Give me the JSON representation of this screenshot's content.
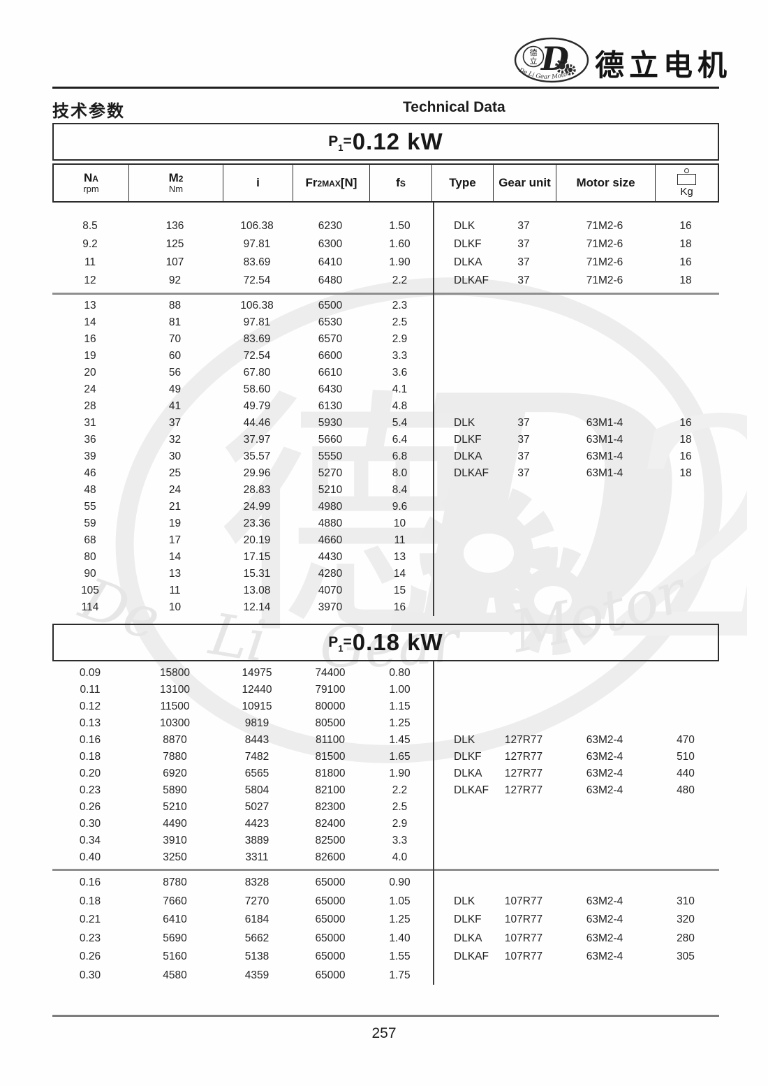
{
  "header": {
    "company_name": "德立电机",
    "title_cn": "技术参数",
    "title_en": "Technical Data",
    "logo": {
      "char_top": "德",
      "char_bottom": "立",
      "letter": "D",
      "curved_text": "De Li Gear Motor"
    }
  },
  "watermark": {
    "char": "德",
    "letter": "D",
    "digit": "2",
    "curved_text": "De  Li  Gear  Motor"
  },
  "columns": {
    "na_main": "N",
    "na_sub": "A",
    "na_unit": "rpm",
    "m2_main": "M",
    "m2_sub": "2",
    "m2_unit": "Nm",
    "i": "i",
    "fr_pre": "Fr",
    "fr_sub": "2MAX",
    "fr_post": "[N]",
    "fs_main": "f",
    "fs_sub": "S",
    "type": "Type",
    "gear_unit": "Gear unit",
    "motor_size": "Motor size",
    "kg": "Kg"
  },
  "sections": [
    {
      "power_prefix": "P",
      "power_sub": "1",
      "power_eq": "=",
      "power_value": "0.12 kW",
      "blocks": [
        {
          "rows": [
            [
              "8.5",
              "136",
              "106.38",
              "6230",
              "1.50",
              "DLK",
              "37",
              "71M2-6",
              "16"
            ],
            [
              "9.2",
              "125",
              "97.81",
              "6300",
              "1.60",
              "DLKF",
              "37",
              "71M2-6",
              "18"
            ],
            [
              "11",
              "107",
              "83.69",
              "6410",
              "1.90",
              "DLKA",
              "37",
              "71M2-6",
              "16"
            ],
            [
              "12",
              "92",
              "72.54",
              "6480",
              "2.2",
              "DLKAF",
              "37",
              "71M2-6",
              "18"
            ]
          ]
        },
        {
          "rows": [
            [
              "13",
              "88",
              "106.38",
              "6500",
              "2.3",
              "",
              "",
              "",
              ""
            ],
            [
              "14",
              "81",
              "97.81",
              "6530",
              "2.5",
              "",
              "",
              "",
              ""
            ],
            [
              "16",
              "70",
              "83.69",
              "6570",
              "2.9",
              "",
              "",
              "",
              ""
            ],
            [
              "19",
              "60",
              "72.54",
              "6600",
              "3.3",
              "",
              "",
              "",
              ""
            ],
            [
              "20",
              "56",
              "67.80",
              "6610",
              "3.6",
              "",
              "",
              "",
              ""
            ],
            [
              "24",
              "49",
              "58.60",
              "6430",
              "4.1",
              "",
              "",
              "",
              ""
            ],
            [
              "28",
              "41",
              "49.79",
              "6130",
              "4.8",
              "",
              "",
              "",
              ""
            ],
            [
              "31",
              "37",
              "44.46",
              "5930",
              "5.4",
              "DLK",
              "37",
              "63M1-4",
              "16"
            ],
            [
              "36",
              "32",
              "37.97",
              "5660",
              "6.4",
              "DLKF",
              "37",
              "63M1-4",
              "18"
            ],
            [
              "39",
              "30",
              "35.57",
              "5550",
              "6.8",
              "DLKA",
              "37",
              "63M1-4",
              "16"
            ],
            [
              "46",
              "25",
              "29.96",
              "5270",
              "8.0",
              "DLKAF",
              "37",
              "63M1-4",
              "18"
            ],
            [
              "48",
              "24",
              "28.83",
              "5210",
              "8.4",
              "",
              "",
              "",
              ""
            ],
            [
              "55",
              "21",
              "24.99",
              "4980",
              "9.6",
              "",
              "",
              "",
              ""
            ],
            [
              "59",
              "19",
              "23.36",
              "4880",
              "10",
              "",
              "",
              "",
              ""
            ],
            [
              "68",
              "17",
              "20.19",
              "4660",
              "11",
              "",
              "",
              "",
              ""
            ],
            [
              "80",
              "14",
              "17.15",
              "4430",
              "13",
              "",
              "",
              "",
              ""
            ],
            [
              "90",
              "13",
              "15.31",
              "4280",
              "14",
              "",
              "",
              "",
              ""
            ],
            [
              "105",
              "11",
              "13.08",
              "4070",
              "15",
              "",
              "",
              "",
              ""
            ],
            [
              "114",
              "10",
              "12.14",
              "3970",
              "16",
              "",
              "",
              "",
              ""
            ]
          ]
        }
      ]
    },
    {
      "power_prefix": "P",
      "power_sub": "1",
      "power_eq": "=",
      "power_value": "0.18 kW",
      "blocks": [
        {
          "rows": [
            [
              "0.09",
              "15800",
              "14975",
              "74400",
              "0.80",
              "",
              "",
              "",
              ""
            ],
            [
              "0.11",
              "13100",
              "12440",
              "79100",
              "1.00",
              "",
              "",
              "",
              ""
            ],
            [
              "0.12",
              "11500",
              "10915",
              "80000",
              "1.15",
              "",
              "",
              "",
              ""
            ],
            [
              "0.13",
              "10300",
              "9819",
              "80500",
              "1.25",
              "",
              "",
              "",
              ""
            ],
            [
              "0.16",
              "8870",
              "8443",
              "81100",
              "1.45",
              "DLK",
              "127R77",
              "63M2-4",
              "470"
            ],
            [
              "0.18",
              "7880",
              "7482",
              "81500",
              "1.65",
              "DLKF",
              "127R77",
              "63M2-4",
              "510"
            ],
            [
              "0.20",
              "6920",
              "6565",
              "81800",
              "1.90",
              "DLKA",
              "127R77",
              "63M2-4",
              "440"
            ],
            [
              "0.23",
              "5890",
              "5804",
              "82100",
              "2.2",
              "DLKAF",
              "127R77",
              "63M2-4",
              "480"
            ],
            [
              "0.26",
              "5210",
              "5027",
              "82300",
              "2.5",
              "",
              "",
              "",
              ""
            ],
            [
              "0.30",
              "4490",
              "4423",
              "82400",
              "2.9",
              "",
              "",
              "",
              ""
            ],
            [
              "0.34",
              "3910",
              "3889",
              "82500",
              "3.3",
              "",
              "",
              "",
              ""
            ],
            [
              "0.40",
              "3250",
              "3311",
              "82600",
              "4.0",
              "",
              "",
              "",
              ""
            ]
          ]
        },
        {
          "rows": [
            [
              "0.16",
              "8780",
              "8328",
              "65000",
              "0.90",
              "",
              "",
              "",
              ""
            ],
            [
              "0.18",
              "7660",
              "7270",
              "65000",
              "1.05",
              "DLK",
              "107R77",
              "63M2-4",
              "310"
            ],
            [
              "0.21",
              "6410",
              "6184",
              "65000",
              "1.25",
              "DLKF",
              "107R77",
              "63M2-4",
              "320"
            ],
            [
              "0.23",
              "5690",
              "5662",
              "65000",
              "1.40",
              "DLKA",
              "107R77",
              "63M2-4",
              "280"
            ],
            [
              "0.26",
              "5160",
              "5138",
              "65000",
              "1.55",
              "DLKAF",
              "107R77",
              "63M2-4",
              "305"
            ],
            [
              "0.30",
              "4580",
              "4359",
              "65000",
              "1.75",
              "",
              "",
              "",
              ""
            ]
          ]
        }
      ]
    }
  ],
  "footer": {
    "page_number": "257"
  }
}
